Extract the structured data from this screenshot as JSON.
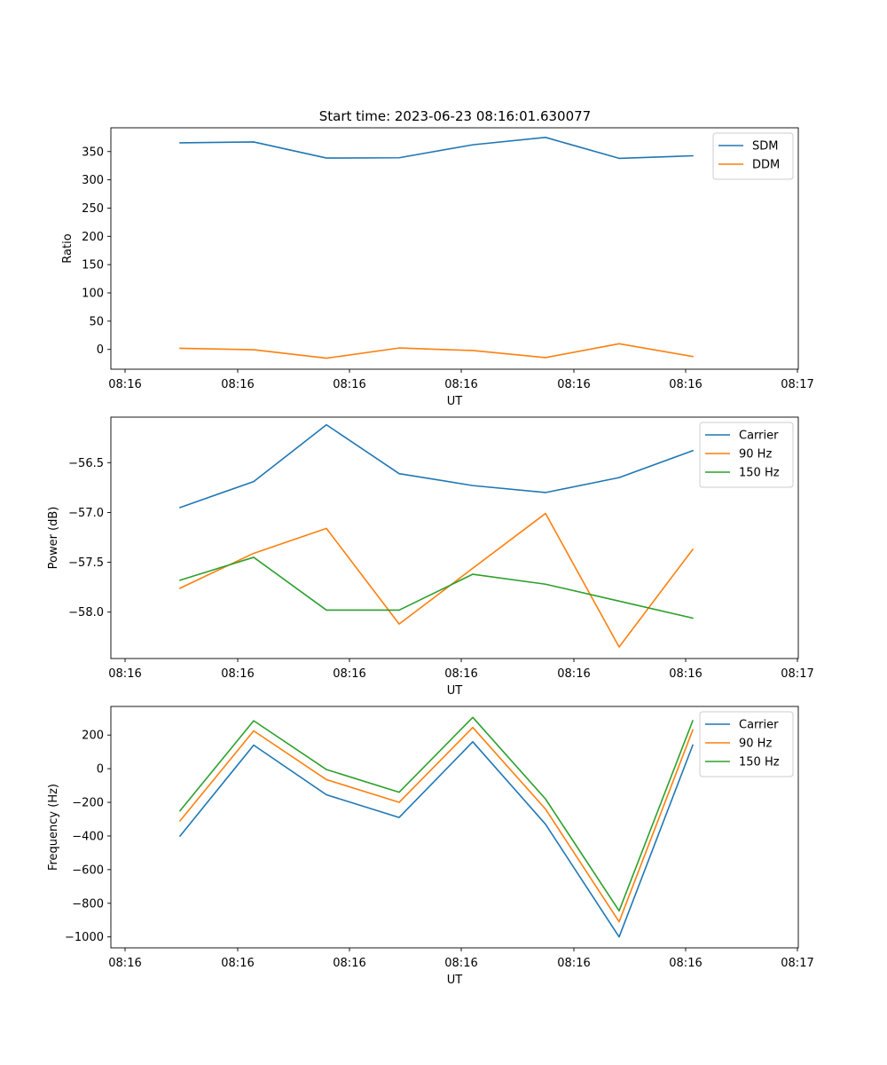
{
  "title": "Start time: 2023-06-23 08:16:01.630077",
  "colors": {
    "blue": "#1f77b4",
    "orange": "#ff7f0e",
    "green": "#2ca02c"
  },
  "chart_data": [
    {
      "type": "line",
      "xlabel": "UT",
      "ylabel": "Ratio",
      "x_tick_labels": [
        "08:16",
        "08:16",
        "08:16",
        "08:16",
        "08:16",
        "08:16",
        "08:17"
      ],
      "y_ticks": [
        0,
        50,
        100,
        150,
        200,
        250,
        300,
        350
      ],
      "y_tick_labels": [
        "0",
        "50",
        "100",
        "150",
        "200",
        "250",
        "300",
        "350"
      ],
      "ylim": [
        -35,
        392
      ],
      "grid": false,
      "legend": "top-right",
      "series": [
        {
          "name": "SDM",
          "color": "#1f77b4",
          "values": [
            365.5,
            367,
            338.5,
            339,
            362,
            375,
            338,
            342.5
          ]
        },
        {
          "name": "DDM",
          "color": "#ff7f0e",
          "values": [
            2,
            -0.5,
            -15.5,
            2.5,
            -2,
            -14.5,
            10,
            -12.5
          ]
        }
      ]
    },
    {
      "type": "line",
      "xlabel": "UT",
      "ylabel": "Power (dB)",
      "x_tick_labels": [
        "08:16",
        "08:16",
        "08:16",
        "08:16",
        "08:16",
        "08:16",
        "08:17"
      ],
      "y_ticks": [
        -58.0,
        -57.5,
        -57.0,
        -56.5
      ],
      "y_tick_labels": [
        "−58.0",
        "−57.5",
        "−57.0",
        "−56.5"
      ],
      "ylim": [
        -58.466,
        -56.043
      ],
      "grid": false,
      "legend": "top-right",
      "series": [
        {
          "name": "Carrier",
          "color": "#1f77b4",
          "values": [
            -56.95,
            -56.69,
            -56.12,
            -56.61,
            -56.73,
            -56.8,
            -56.65,
            -56.38
          ]
        },
        {
          "name": "90 Hz",
          "color": "#ff7f0e",
          "values": [
            -57.76,
            -57.41,
            -57.16,
            -58.12,
            -57.56,
            -57.01,
            -58.35,
            -57.37
          ]
        },
        {
          "name": "150 Hz",
          "color": "#2ca02c",
          "values": [
            -57.68,
            -57.45,
            -57.98,
            -57.98,
            -57.62,
            -57.72,
            -57.89,
            -58.06
          ]
        }
      ]
    },
    {
      "type": "line",
      "xlabel": "UT",
      "ylabel": "Frequency (Hz)",
      "x_tick_labels": [
        "08:16",
        "08:16",
        "08:16",
        "08:16",
        "08:16",
        "08:16",
        "08:17"
      ],
      "y_ticks": [
        -1000,
        -800,
        -600,
        -400,
        -200,
        0,
        200
      ],
      "y_tick_labels": [
        "−1000",
        "−800",
        "−600",
        "−400",
        "−200",
        "0",
        "200"
      ],
      "ylim": [
        -1065,
        370
      ],
      "grid": false,
      "legend": "top-right",
      "series": [
        {
          "name": "Carrier",
          "color": "#1f77b4",
          "values": [
            -400,
            140,
            -155,
            -290,
            160,
            -330,
            -1000,
            140
          ]
        },
        {
          "name": "90 Hz",
          "color": "#ff7f0e",
          "values": [
            -310,
            225,
            -65,
            -200,
            245,
            -240,
            -910,
            230
          ]
        },
        {
          "name": "150 Hz",
          "color": "#2ca02c",
          "values": [
            -250,
            285,
            -5,
            -140,
            305,
            -180,
            -845,
            285
          ]
        }
      ]
    }
  ]
}
